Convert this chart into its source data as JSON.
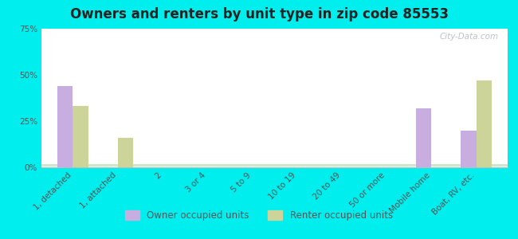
{
  "title": "Owners and renters by unit type in zip code 85553",
  "categories": [
    "1, detached",
    "1, attached",
    "2",
    "3 or 4",
    "5 to 9",
    "10 to 19",
    "20 to 49",
    "50 or more",
    "Mobile home",
    "Boat, RV, etc."
  ],
  "owner_values": [
    44,
    0,
    0,
    0,
    0,
    0,
    0,
    0,
    32,
    20
  ],
  "renter_values": [
    33,
    16,
    0,
    0,
    0,
    0,
    0,
    0,
    0,
    47
  ],
  "owner_color": "#c8aee0",
  "renter_color": "#cdd49a",
  "ylim": [
    0,
    75
  ],
  "yticks": [
    0,
    25,
    50,
    75
  ],
  "ytick_labels": [
    "0%",
    "25%",
    "50%",
    "75%"
  ],
  "bar_width": 0.35,
  "bg_color": "#00eeee",
  "plot_bg_top": "#cde8cd",
  "plot_bg_bottom": "#f2faf0",
  "grid_color": "#ffffff",
  "watermark": "City-Data.com",
  "legend_owner": "Owner occupied units",
  "legend_renter": "Renter occupied units",
  "title_fontsize": 12,
  "tick_fontsize": 7.5
}
